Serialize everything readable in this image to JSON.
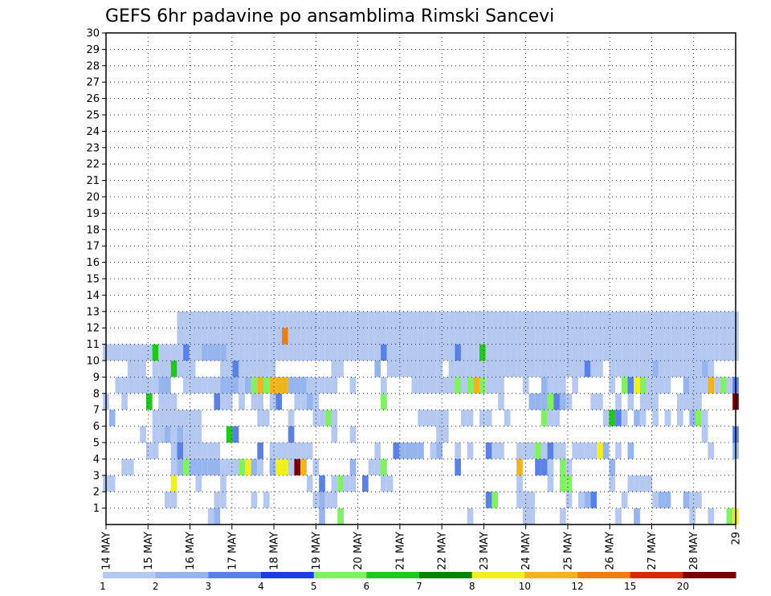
{
  "chart_data": {
    "type": "heatmap",
    "title": "GEFS 6hr padavine po ansamblima Rimski Sancevi",
    "x_tick_labels": [
      "14 MAY",
      "15 MAY",
      "16 MAY",
      "17 MAY",
      "18 MAY",
      "19 MAY",
      "20 MAY",
      "21 MAY",
      "22 MAY",
      "23 MAY",
      "24 MAY",
      "25 MAY",
      "26 MAY",
      "27 MAY",
      "28 MAY",
      "29"
    ],
    "y_tick_labels": [
      "1",
      "2",
      "3",
      "4",
      "5",
      "6",
      "7",
      "8",
      "9",
      "10",
      "11",
      "12",
      "13",
      "14",
      "15",
      "16",
      "17",
      "18",
      "19",
      "20",
      "21",
      "22",
      "23",
      "24",
      "25",
      "26",
      "27",
      "28",
      "29",
      "30"
    ],
    "x_steps_per_day": 4,
    "n_members": 30,
    "grid": "dotted",
    "colorbar": {
      "levels": [
        "1",
        "2",
        "3",
        "4",
        "5",
        "6",
        "7",
        "8",
        "10",
        "12",
        "15",
        "20"
      ],
      "colors": [
        "#b4c8f0",
        "#96b4ee",
        "#5a82e6",
        "#1e3ce6",
        "#82f064",
        "#1ec81e",
        "#0a820a",
        "#f0f01e",
        "#f0b41e",
        "#f07d0f",
        "#dc280a",
        "#780000"
      ]
    },
    "series": [
      {
        "member": 1,
        "values": {
          "17": 1,
          "18": 2,
          "35": 2,
          "38": 5,
          "59": 1,
          "68": 1,
          "69": 1,
          "74": 1,
          "83": 1,
          "86": 2,
          "95": 1,
          "98": 1,
          "101": 5,
          "102": 8
        }
      },
      {
        "member": 2,
        "values": {
          "10": 1,
          "11": 1,
          "18": 1,
          "19": 1,
          "24": 1,
          "26": 1,
          "34": 1,
          "35": 2,
          "36": 1,
          "37": 1,
          "62": 3,
          "63": 5,
          "67": 1,
          "68": 1,
          "69": 1,
          "75": 1,
          "77": 1,
          "78": 2,
          "79": 3,
          "84": 1,
          "89": 1,
          "90": 2,
          "91": 2,
          "94": 2,
          "95": 1,
          "96": 1
        }
      },
      {
        "member": 3,
        "values": {
          "0": 1,
          "1": 1,
          "11": 9,
          "15": 1,
          "19": 1,
          "33": 1,
          "35": 3,
          "37": 1,
          "38": 5,
          "39": 1,
          "40": 1,
          "42": 3,
          "45": 1,
          "46": 1,
          "67": 1,
          "72": 1,
          "74": 5,
          "75": 5,
          "82": 1,
          "85": 1,
          "86": 1,
          "87": 1,
          "88": 1
        }
      },
      {
        "member": 4,
        "values": {
          "3": 1,
          "4": 1,
          "11": 1,
          "12": 2,
          "13": 5,
          "14": 2,
          "15": 2,
          "16": 2,
          "17": 2,
          "18": 2,
          "19": 1,
          "20": 1,
          "21": 1,
          "22": 5,
          "23": 8,
          "24": 2,
          "25": 1,
          "27": 2,
          "28": 8,
          "29": 8,
          "30": 1,
          "31": 20,
          "32": 10,
          "34": 1,
          "40": 2,
          "43": 1,
          "44": 1,
          "45": 5,
          "57": 3,
          "67": 10,
          "70": 3,
          "71": 3,
          "72": 1,
          "74": 5,
          "75": 1,
          "82": 2
        }
      },
      {
        "member": 5,
        "values": {
          "7": 1,
          "8": 1,
          "11": 1,
          "12": 3,
          "13": 1,
          "14": 1,
          "15": 1,
          "16": 1,
          "17": 1,
          "18": 1,
          "25": 3,
          "27": 1,
          "28": 1,
          "29": 1,
          "30": 1,
          "31": 1,
          "32": 1,
          "33": 1,
          "44": 1,
          "47": 3,
          "48": 2,
          "49": 2,
          "50": 2,
          "51": 2,
          "53": 1,
          "54": 2,
          "57": 1,
          "59": 1,
          "62": 3,
          "63": 1,
          "64": 1,
          "67": 1,
          "68": 1,
          "69": 1,
          "70": 5,
          "71": 1,
          "72": 3,
          "73": 1,
          "74": 1,
          "76": 1,
          "77": 1,
          "78": 1,
          "79": 1,
          "80": 8,
          "81": 2,
          "83": 1,
          "85": 2,
          "98": 1,
          "102": 2
        }
      },
      {
        "member": 6,
        "values": {
          "6": 1,
          "8": 1,
          "9": 1,
          "10": 2,
          "11": 1,
          "12": 2,
          "13": 1,
          "14": 1,
          "15": 1,
          "20": 6,
          "21": 3,
          "30": 3,
          "37": 1,
          "40": 1,
          "54": 1,
          "55": 1,
          "97": 1,
          "102": 3
        }
      },
      {
        "member": 7,
        "values": {
          "1": 2,
          "8": 1,
          "9": 1,
          "10": 1,
          "11": 1,
          "12": 1,
          "13": 1,
          "14": 1,
          "15": 1,
          "25": 1,
          "26": 1,
          "30": 1,
          "34": 1,
          "35": 1,
          "36": 5,
          "37": 1,
          "51": 1,
          "52": 1,
          "53": 1,
          "54": 1,
          "55": 1,
          "58": 1,
          "59": 1,
          "61": 1,
          "62": 1,
          "65": 1,
          "71": 5,
          "72": 1,
          "73": 1,
          "81": 1,
          "82": 6,
          "83": 3,
          "84": 1,
          "86": 2,
          "87": 1,
          "89": 1,
          "91": 1,
          "93": 1,
          "95": 2,
          "96": 5,
          "97": 1
        }
      },
      {
        "member": 8,
        "values": {
          "0": 1,
          "3": 1,
          "7": 6,
          "9": 1,
          "10": 1,
          "11": 1,
          "18": 3,
          "19": 1,
          "20": 1,
          "22": 1,
          "24": 1,
          "25": 1,
          "27": 1,
          "28": 3,
          "31": 1,
          "32": 1,
          "33": 2,
          "34": 1,
          "45": 5,
          "64": 1,
          "69": 2,
          "70": 2,
          "71": 2,
          "72": 5,
          "73": 3,
          "74": 2,
          "75": 1,
          "79": 1,
          "80": 1,
          "83": 1,
          "85": 1,
          "87": 1,
          "88": 1,
          "89": 1,
          "93": 1,
          "94": 1,
          "95": 1,
          "96": 1,
          "102": 20
        }
      },
      {
        "member": 9,
        "values": {
          "2": 1,
          "3": 1,
          "4": 1,
          "5": 1,
          "6": 1,
          "7": 1,
          "8": 1,
          "9": 2,
          "10": 2,
          "13": 1,
          "14": 1,
          "15": 1,
          "16": 1,
          "17": 1,
          "18": 1,
          "19": 2,
          "20": 2,
          "21": 2,
          "22": 1,
          "23": 2,
          "24": 5,
          "25": 10,
          "26": 5,
          "27": 10,
          "28": 10,
          "29": 10,
          "30": 2,
          "31": 2,
          "32": 2,
          "33": 1,
          "34": 1,
          "35": 1,
          "36": 1,
          "37": 1,
          "40": 1,
          "45": 1,
          "50": 1,
          "51": 1,
          "52": 1,
          "53": 1,
          "54": 1,
          "55": 1,
          "56": 1,
          "57": 5,
          "58": 1,
          "59": 5,
          "60": 10,
          "61": 5,
          "62": 1,
          "63": 1,
          "64": 1,
          "68": 1,
          "71": 2,
          "72": 1,
          "73": 1,
          "74": 1,
          "76": 1,
          "82": 1,
          "84": 5,
          "85": 3,
          "86": 8,
          "87": 5,
          "88": 1,
          "89": 1,
          "90": 1,
          "91": 1,
          "94": 2,
          "95": 1,
          "96": 1,
          "97": 1,
          "98": 10,
          "99": 1,
          "100": 5,
          "101": 1,
          "102": 3
        }
      },
      {
        "member": 10,
        "values": {
          "4": 1,
          "5": 1,
          "6": 1,
          "8": 1,
          "9": 1,
          "10": 1,
          "11": 6,
          "12": 1,
          "13": 1,
          "14": 1,
          "19": 1,
          "20": 1,
          "21": 3,
          "22": 1,
          "23": 1,
          "24": 1,
          "25": 1,
          "26": 1,
          "27": 1,
          "37": 1,
          "38": 1,
          "44": 2,
          "46": 1,
          "47": 1,
          "48": 1,
          "49": 1,
          "50": 1,
          "51": 1,
          "52": 1,
          "53": 1,
          "54": 1,
          "56": 1,
          "57": 1,
          "58": 1,
          "59": 1,
          "60": 1,
          "61": 1,
          "62": 1,
          "63": 1,
          "64": 1,
          "65": 1,
          "66": 1,
          "67": 1,
          "68": 1,
          "69": 1,
          "70": 1,
          "71": 1,
          "72": 1,
          "73": 1,
          "74": 1,
          "75": 1,
          "76": 1,
          "77": 1,
          "78": 3,
          "79": 1,
          "80": 1,
          "82": 1,
          "83": 1,
          "84": 1,
          "85": 1,
          "86": 1,
          "87": 1,
          "88": 1,
          "89": 2,
          "90": 1,
          "91": 1,
          "92": 1,
          "93": 1,
          "94": 1,
          "95": 1,
          "96": 1,
          "97": 2,
          "98": 1
        }
      },
      {
        "member": 11,
        "values": {
          "0": 1,
          "1": 1,
          "2": 1,
          "3": 1,
          "4": 1,
          "5": 1,
          "6": 1,
          "7": 1,
          "8": 6,
          "9": 1,
          "10": 1,
          "11": 1,
          "12": 1,
          "13": 3,
          "14": 1,
          "15": 1,
          "16": 2,
          "17": 2,
          "18": 2,
          "19": 2,
          "20": 1,
          "21": 1,
          "22": 1,
          "23": 1,
          "24": 1,
          "25": 1,
          "26": 1,
          "27": 1,
          "28": 1,
          "29": 1,
          "30": 1,
          "31": 1,
          "32": 1,
          "33": 1,
          "34": 1,
          "35": 1,
          "36": 1,
          "37": 1,
          "38": 1,
          "39": 1,
          "40": 1,
          "41": 1,
          "42": 1,
          "43": 1,
          "44": 1,
          "45": 3,
          "46": 1,
          "47": 1,
          "48": 1,
          "49": 1,
          "50": 1,
          "51": 1,
          "52": 1,
          "53": 1,
          "54": 1,
          "55": 1,
          "56": 1,
          "57": 3,
          "58": 1,
          "59": 1,
          "60": 1,
          "61": 6,
          "62": 1,
          "63": 1,
          "64": 1,
          "65": 1,
          "66": 1,
          "67": 1,
          "68": 1,
          "69": 1,
          "70": 1,
          "71": 1,
          "72": 1,
          "73": 1,
          "74": 1,
          "75": 1,
          "76": 1,
          "77": 1,
          "78": 1,
          "79": 1,
          "80": 1,
          "81": 1,
          "82": 1,
          "83": 1,
          "84": 1,
          "85": 1,
          "86": 1,
          "87": 1,
          "88": 1,
          "89": 1,
          "90": 1,
          "91": 1,
          "92": 1,
          "93": 1,
          "94": 1,
          "95": 1,
          "96": 1,
          "97": 1,
          "98": 1,
          "99": 1,
          "100": 1,
          "101": 1,
          "102": 1
        }
      },
      {
        "member": 12,
        "values": {
          "12": 1,
          "13": 1,
          "14": 1,
          "15": 1,
          "16": 1,
          "17": 1,
          "18": 1,
          "19": 1,
          "20": 1,
          "21": 1,
          "22": 1,
          "23": 1,
          "24": 1,
          "25": 1,
          "26": 1,
          "27": 1,
          "28": 1,
          "29": 12,
          "30": 1,
          "31": 1,
          "32": 1,
          "33": 1,
          "34": 1,
          "35": 1,
          "36": 1,
          "37": 1,
          "38": 1,
          "39": 1,
          "40": 1,
          "41": 1,
          "42": 1,
          "43": 1,
          "44": 1,
          "45": 1,
          "46": 1,
          "47": 1,
          "48": 1,
          "49": 1,
          "50": 1,
          "51": 1,
          "52": 1,
          "53": 1,
          "54": 1,
          "55": 1,
          "56": 1,
          "57": 1,
          "58": 1,
          "59": 1,
          "60": 1,
          "61": 1,
          "62": 1,
          "63": 1,
          "64": 1,
          "65": 1,
          "66": 1,
          "67": 1,
          "68": 1,
          "69": 1,
          "70": 1,
          "71": 1,
          "72": 1,
          "73": 1,
          "74": 1,
          "75": 1,
          "76": 1,
          "77": 1,
          "78": 1,
          "79": 1,
          "80": 1,
          "81": 1,
          "82": 1,
          "83": 1,
          "84": 1,
          "85": 1,
          "86": 1,
          "87": 1,
          "88": 1,
          "89": 1,
          "90": 1,
          "91": 1,
          "92": 1,
          "93": 1,
          "94": 1,
          "95": 1,
          "96": 1,
          "97": 1,
          "98": 1,
          "99": 1,
          "100": 1,
          "101": 1,
          "102": 1
        }
      },
      {
        "member": 13,
        "values": {
          "12": 1,
          "13": 1,
          "14": 1,
          "15": 1,
          "16": 1,
          "17": 1,
          "18": 1,
          "19": 1,
          "20": 1,
          "21": 1,
          "22": 1,
          "23": 1,
          "24": 1,
          "25": 1,
          "26": 1,
          "27": 1,
          "28": 1,
          "29": 1,
          "30": 1,
          "31": 1,
          "32": 1,
          "33": 1,
          "34": 1,
          "35": 1,
          "36": 1,
          "37": 1,
          "38": 1,
          "39": 1,
          "40": 1,
          "41": 1,
          "42": 1,
          "43": 1,
          "44": 1,
          "45": 1,
          "46": 1,
          "47": 1,
          "48": 1,
          "49": 1,
          "50": 1,
          "51": 1,
          "52": 1,
          "53": 1,
          "54": 1,
          "55": 1,
          "56": 1,
          "57": 1,
          "58": 1,
          "59": 1,
          "60": 1,
          "61": 1,
          "62": 1,
          "63": 1,
          "64": 1,
          "65": 1,
          "66": 1,
          "67": 1,
          "68": 1,
          "69": 1,
          "70": 1,
          "71": 1,
          "72": 1,
          "73": 1,
          "74": 1,
          "75": 1,
          "76": 1,
          "77": 1,
          "78": 1,
          "79": 1,
          "80": 1,
          "81": 1,
          "82": 1,
          "83": 1,
          "84": 1,
          "85": 1,
          "86": 1,
          "87": 1,
          "88": 1,
          "89": 1,
          "90": 1,
          "91": 1,
          "92": 1,
          "93": 1,
          "94": 1,
          "95": 1,
          "96": 1,
          "97": 1,
          "98": 1,
          "99": 1,
          "100": 1,
          "101": 1,
          "102": 1
        }
      }
    ]
  }
}
